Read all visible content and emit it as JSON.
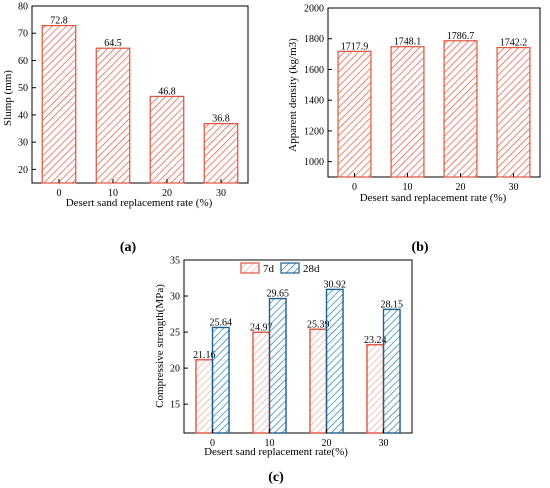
{
  "chart_data": [
    {
      "id": "a",
      "type": "bar",
      "panel_label": "(a)",
      "title": "",
      "xlabel": "Desert sand replacement rate (%)",
      "ylabel": "Slump (mm)",
      "categories": [
        "0",
        "10",
        "20",
        "30"
      ],
      "values": [
        72.8,
        64.5,
        46.8,
        36.8
      ],
      "data_labels": [
        "72.8",
        "64.5",
        "46.8",
        "36.8"
      ],
      "ylim": [
        15,
        80
      ],
      "yticks": [
        20,
        30,
        40,
        50,
        60,
        70,
        80
      ],
      "grid": false,
      "colors": {
        "stroke": "#e0533e",
        "hatch": "#e0533e"
      }
    },
    {
      "id": "b",
      "type": "bar",
      "panel_label": "(b)",
      "title": "",
      "xlabel": "Desert sand replacement rate (%)",
      "ylabel": "Apparent density (kg/m3)",
      "categories": [
        "0",
        "10",
        "20",
        "30"
      ],
      "values": [
        1717.9,
        1748.1,
        1786.7,
        1742.2
      ],
      "data_labels": [
        "1717.9",
        "1748.1",
        "1786.7",
        "1742.2"
      ],
      "ylim": [
        900,
        2000
      ],
      "yticks": [
        1000,
        1200,
        1400,
        1600,
        1800,
        2000
      ],
      "grid": false,
      "colors": {
        "stroke": "#e0533e",
        "hatch": "#e0533e"
      }
    },
    {
      "id": "c",
      "type": "bar",
      "panel_label": "(c)",
      "title": "",
      "xlabel": "Desert sand replacement rate(%)",
      "ylabel": "Compressive strength(MPa)",
      "categories": [
        "0",
        "10",
        "20",
        "30"
      ],
      "series": [
        {
          "name": "7d",
          "values": [
            21.16,
            24.97,
            25.39,
            23.24
          ],
          "data_labels": [
            "21.16",
            "24.97",
            "25.39",
            "23.24"
          ],
          "colors": {
            "stroke": "#e0533e",
            "hatch": "#f0a8a0"
          }
        },
        {
          "name": "28d",
          "values": [
            25.64,
            29.65,
            30.92,
            28.15
          ],
          "data_labels": [
            "25.64",
            "29.65",
            "30.92",
            "28.15"
          ],
          "colors": {
            "stroke": "#1f5f8b",
            "hatch": "#1f7fb0"
          }
        }
      ],
      "ylim": [
        11,
        35
      ],
      "yticks": [
        15,
        20,
        25,
        30,
        35
      ],
      "legend": "top-center",
      "grid": false
    }
  ]
}
